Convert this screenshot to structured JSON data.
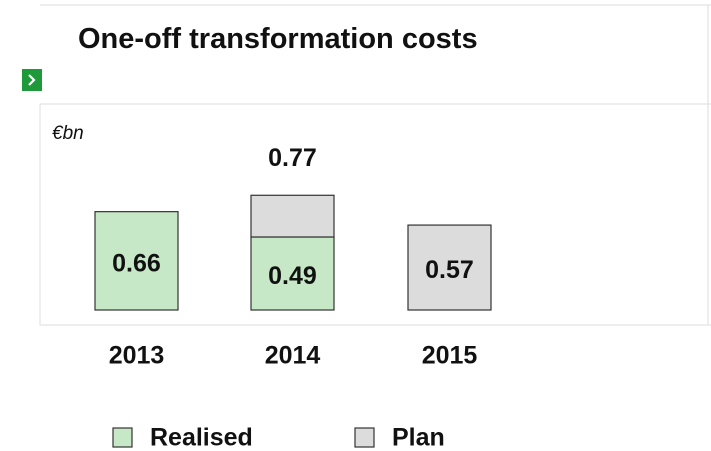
{
  "chart_data": {
    "type": "stacked_bar",
    "title": "One-off transformation costs",
    "unit": "€bn",
    "categories": [
      "2013",
      "2014",
      "2015"
    ],
    "series": [
      {
        "name": "Realised",
        "color": "#c6e8c6",
        "values": [
          0.66,
          0.49,
          null
        ],
        "value_labels": [
          "0.66",
          "0.49",
          null
        ]
      },
      {
        "name": "Plan",
        "color": "#dcdcdc",
        "values": [
          null,
          0.28,
          0.57
        ],
        "value_labels": [
          null,
          null,
          "0.57"
        ]
      }
    ],
    "totals": [
      null,
      0.77,
      null
    ]
  }
}
